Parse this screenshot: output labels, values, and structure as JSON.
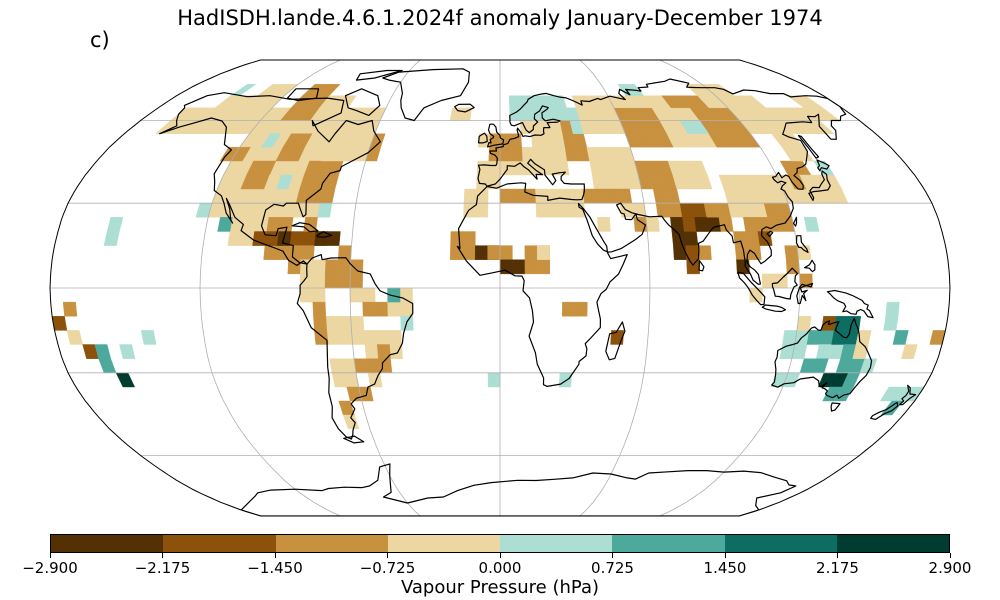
{
  "title": "HadISDH.lande.4.6.1.2024f anomaly January-December 1974",
  "panel_label": "c)",
  "colorbar": {
    "label": "Vapour Pressure (hPa)",
    "ticks": [
      "−2.900",
      "−2.175",
      "−1.450",
      "−0.725",
      "0.000",
      "0.725",
      "1.450",
      "2.175",
      "2.900"
    ],
    "colors": [
      "#543005",
      "#8c510a",
      "#c8913f",
      "#ecd6a2",
      "#acded4",
      "#4ea99d",
      "#0d6d62",
      "#003c30"
    ]
  },
  "map": {
    "projection": "Robinson",
    "grid_cell_deg": 5,
    "land_color": "#ffffff",
    "coast_color": "#000000",
    "grid_color": "#b0b0b0"
  }
}
